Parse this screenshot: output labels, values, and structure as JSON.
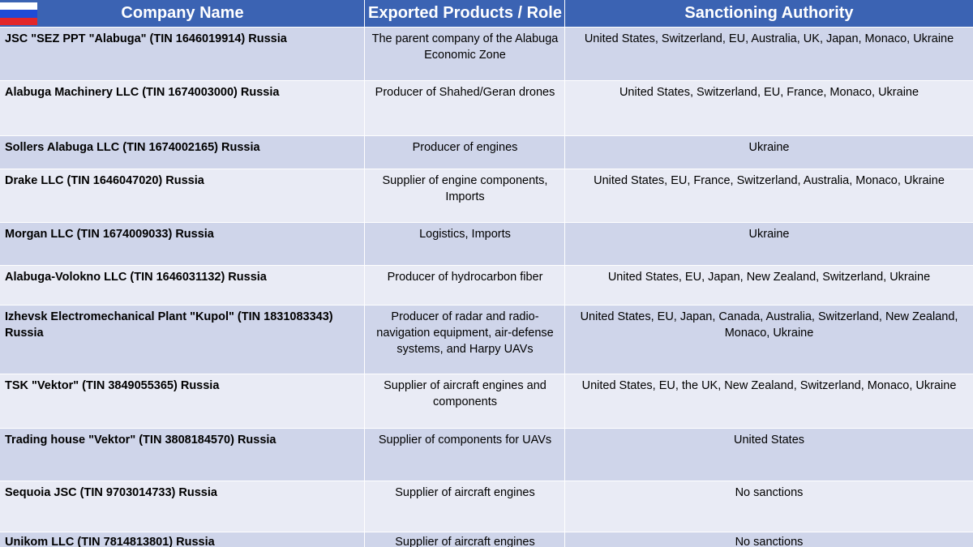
{
  "header": {
    "col1": "Company Name",
    "col2": "Exported Products / Role",
    "col3": "Sanctioning Authority",
    "flag_icon": "russia-flag-icon"
  },
  "rows": [
    {
      "company": "JSC \"SEZ PPT \"Alabuga\" (TIN 1646019914)  Russia",
      "role": "The parent company of the Alabuga Economic Zone",
      "authority": "United States, Switzerland, EU, Australia, UK, Japan, Monaco, Ukraine"
    },
    {
      "company": "Alabuga Machinery LLC (TIN 1674003000) Russia",
      "role": "Producer of Shahed/Geran drones",
      "authority": "United States, Switzerland, EU, France, Monaco, Ukraine"
    },
    {
      "company": "Sollers Alabuga LLC (TIN 1674002165)  Russia",
      "role": "Producer of engines",
      "authority": "Ukraine"
    },
    {
      "company": "Drake LLC (TIN 1646047020) Russia",
      "role": "Supplier of engine components, Imports",
      "authority": "United States, EU, France, Switzerland, Australia, Monaco, Ukraine"
    },
    {
      "company": "Morgan LLC (TIN 1674009033) Russia",
      "role": "Logistics, Imports",
      "authority": "Ukraine"
    },
    {
      "company": "Alabuga-Volokno LLC (TIN 1646031132) Russia",
      "role": "Producer of hydrocarbon fiber",
      "authority": "United States, EU, Japan, New Zealand, Switzerland, Ukraine"
    },
    {
      "company": "Izhevsk Electromechanical Plant \"Kupol\" (TIN 1831083343) Russia",
      "role": "Producer of radar and radio-navigation equipment, air-defense systems, and Harpy UAVs",
      "authority": "United States, EU, Japan, Canada, Australia, Switzerland, New Zealand, Monaco, Ukraine"
    },
    {
      "company": "TSK \"Vektor\" (TIN 3849055365) Russia",
      "role": "Supplier of aircraft engines and components",
      "authority": "United States, EU, the UK, New Zealand, Switzerland,  Monaco, Ukraine"
    },
    {
      "company": "Trading house \"Vektor\" (TIN 3808184570) Russia",
      "role": "Supplier of components for UAVs",
      "authority": "United States"
    },
    {
      "company": "Sequoia JSC (TIN 9703014733) Russia",
      "role": "Supplier of aircraft engines",
      "authority": "No sanctions"
    },
    {
      "company": "Unikom LLC (TIN 7814813801) Russia",
      "role": "Supplier of aircraft engines",
      "authority": "No sanctions"
    }
  ],
  "colors": {
    "header_bg": "#3b63b3",
    "row_odd": "#cfd5ea",
    "row_even": "#e9ebf5"
  }
}
